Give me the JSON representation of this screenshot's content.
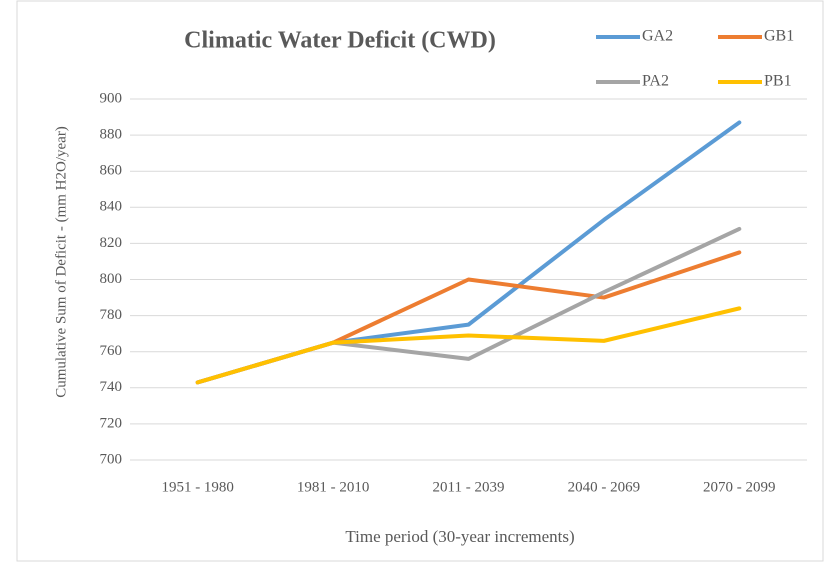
{
  "chart_data": {
    "type": "line",
    "title": "Climatic Water Deficit (CWD)",
    "x_label": "Time period (30-year increments)",
    "y_label": "Cumulative Sum of Deficit - (mm H2O/year)",
    "categories": [
      "1951 - 1980",
      "1981 - 2010",
      "2011 - 2039",
      "2040 - 2069",
      "2070 - 2099"
    ],
    "series": [
      {
        "name": "GA2",
        "color": "#5b9bd5",
        "values": [
          743,
          765,
          775,
          833,
          887
        ]
      },
      {
        "name": "GB1",
        "color": "#ed7d31",
        "values": [
          743,
          765,
          800,
          790,
          815
        ]
      },
      {
        "name": "PA2",
        "color": "#a5a5a5",
        "values": [
          743,
          765,
          756,
          793,
          828
        ]
      },
      {
        "name": "PB1",
        "color": "#ffc000",
        "values": [
          743,
          765,
          769,
          766,
          784
        ]
      }
    ],
    "ylim": [
      700,
      900
    ],
    "yticks": [
      700,
      720,
      740,
      760,
      780,
      800,
      820,
      840,
      860,
      880,
      900
    ],
    "grid": true,
    "legend": "top-right"
  }
}
